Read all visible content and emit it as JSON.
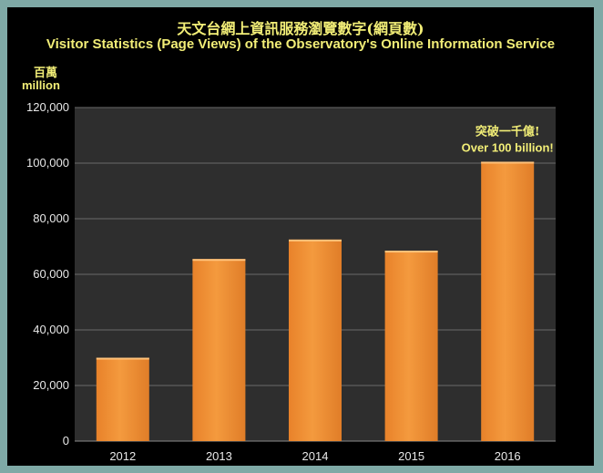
{
  "chart_data": {
    "type": "bar",
    "title_zh": "天文台網上資訊服務瀏覽數字(網頁數)",
    "title": "Visitor Statistics (Page Views) of the Observatory's  Online Information Service",
    "unit_zh": "百萬",
    "unit": "million",
    "categories": [
      "2012",
      "2013",
      "2014",
      "2015",
      "2016"
    ],
    "values": [
      30000,
      65500,
      72500,
      68500,
      100500
    ],
    "ylim": [
      0,
      120000
    ],
    "yticks": [
      "0",
      "20,000",
      "40,000",
      "60,000",
      "80,000",
      "100,000",
      "120,000"
    ],
    "grid": true,
    "annotation": {
      "category": "2016",
      "line1": "突破一千億!",
      "line2": "Over 100 billion!"
    },
    "colors": {
      "background": "#000000",
      "plot_bg": "#2e2e2e",
      "bar": "#f49a3e",
      "text": "#f2ee77",
      "ticks": "#e8e8e8"
    }
  }
}
